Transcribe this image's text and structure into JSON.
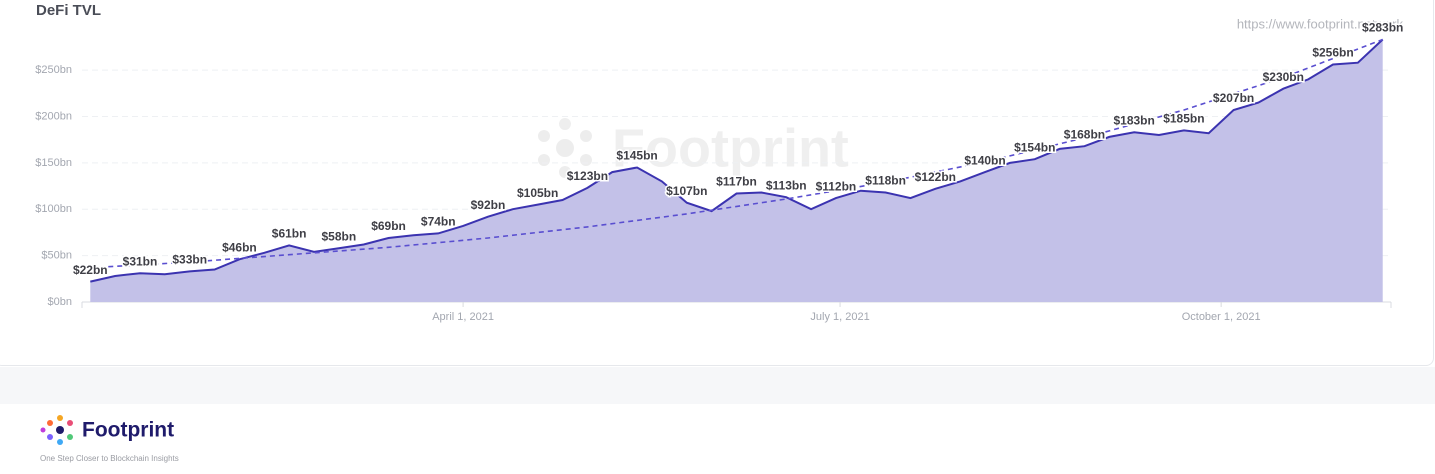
{
  "source": "https://www.footprint.network",
  "watermark": "Footprint",
  "chart_data": {
    "type": "area",
    "title": "DeFi TVL",
    "x": [
      "2021-01-01",
      "2021-01-07",
      "2021-01-13",
      "2021-01-19",
      "2021-01-25",
      "2021-01-31",
      "2021-02-06",
      "2021-02-12",
      "2021-02-18",
      "2021-02-24",
      "2021-03-02",
      "2021-03-08",
      "2021-03-14",
      "2021-03-20",
      "2021-03-26",
      "2021-04-01",
      "2021-04-07",
      "2021-04-13",
      "2021-04-19",
      "2021-04-25",
      "2021-05-01",
      "2021-05-07",
      "2021-05-13",
      "2021-05-19",
      "2021-05-25",
      "2021-05-31",
      "2021-06-06",
      "2021-06-12",
      "2021-06-18",
      "2021-06-24",
      "2021-06-30",
      "2021-07-06",
      "2021-07-12",
      "2021-07-18",
      "2021-07-24",
      "2021-07-30",
      "2021-08-05",
      "2021-08-11",
      "2021-08-17",
      "2021-08-23",
      "2021-08-29",
      "2021-09-04",
      "2021-09-10",
      "2021-09-16",
      "2021-09-22",
      "2021-09-28",
      "2021-10-04",
      "2021-10-10",
      "2021-10-16",
      "2021-10-22",
      "2021-10-28",
      "2021-11-03",
      "2021-11-09"
    ],
    "series": [
      {
        "color": "#3b33b0",
        "fill": "#c3c1e8",
        "values": [
          22,
          28,
          31,
          30,
          33,
          35,
          46,
          53,
          61,
          54,
          58,
          62,
          69,
          72,
          74,
          82,
          92,
          100,
          105,
          110,
          123,
          140,
          145,
          130,
          107,
          98,
          117,
          118,
          113,
          100,
          112,
          120,
          118,
          112,
          122,
          130,
          140,
          150,
          154,
          165,
          168,
          178,
          183,
          180,
          185,
          182,
          207,
          215,
          230,
          240,
          256,
          258,
          283
        ],
        "value_labels": [
          "$22bn",
          null,
          "$31bn",
          null,
          "$33bn",
          null,
          "$46bn",
          null,
          "$61bn",
          null,
          "$58bn",
          null,
          "$69bn",
          null,
          "$74bn",
          null,
          "$92bn",
          null,
          "$105bn",
          null,
          "$123bn",
          null,
          "$145bn",
          null,
          "$107bn",
          null,
          "$117bn",
          null,
          "$113bn",
          null,
          "$112bn",
          null,
          "$118bn",
          null,
          "$122bn",
          null,
          "$140bn",
          null,
          "$154bn",
          null,
          "$168bn",
          null,
          "$183bn",
          null,
          "$185bn",
          null,
          "$207bn",
          null,
          "$230bn",
          null,
          "$256bn",
          null,
          "$283bn"
        ]
      },
      {
        "color": "#5a4fd0",
        "dashed": true,
        "x": [
          "2021-01-01",
          "2021-01-25",
          "2021-02-18",
          "2021-03-14",
          "2021-04-07",
          "2021-05-01",
          "2021-05-25",
          "2021-06-18",
          "2021-07-12",
          "2021-08-05",
          "2021-08-29",
          "2021-09-22",
          "2021-10-16",
          "2021-11-09"
        ],
        "values": [
          37,
          43,
          51,
          59,
          69,
          81,
          95,
          111,
          129,
          151,
          177,
          207,
          242,
          283
        ]
      }
    ],
    "xlim": [
      "2020-12-30",
      "2021-11-11"
    ],
    "xticks": [
      {
        "value": "2021-04-01",
        "label": "April 1, 2021"
      },
      {
        "value": "2021-07-01",
        "label": "July 1, 2021"
      },
      {
        "value": "2021-10-01",
        "label": "October 1, 2021"
      }
    ],
    "ylim": [
      0,
      290
    ],
    "yticks": [
      {
        "value": 0,
        "label": "$0bn"
      },
      {
        "value": 50,
        "label": "$50bn"
      },
      {
        "value": 100,
        "label": "$100bn"
      },
      {
        "value": 150,
        "label": "$150bn"
      },
      {
        "value": 200,
        "label": "$200bn"
      },
      {
        "value": 250,
        "label": "$250bn"
      }
    ],
    "grid": true
  },
  "footer": {
    "brand": "Footprint",
    "tagline": "One Step Closer to Blockchain Insights"
  }
}
